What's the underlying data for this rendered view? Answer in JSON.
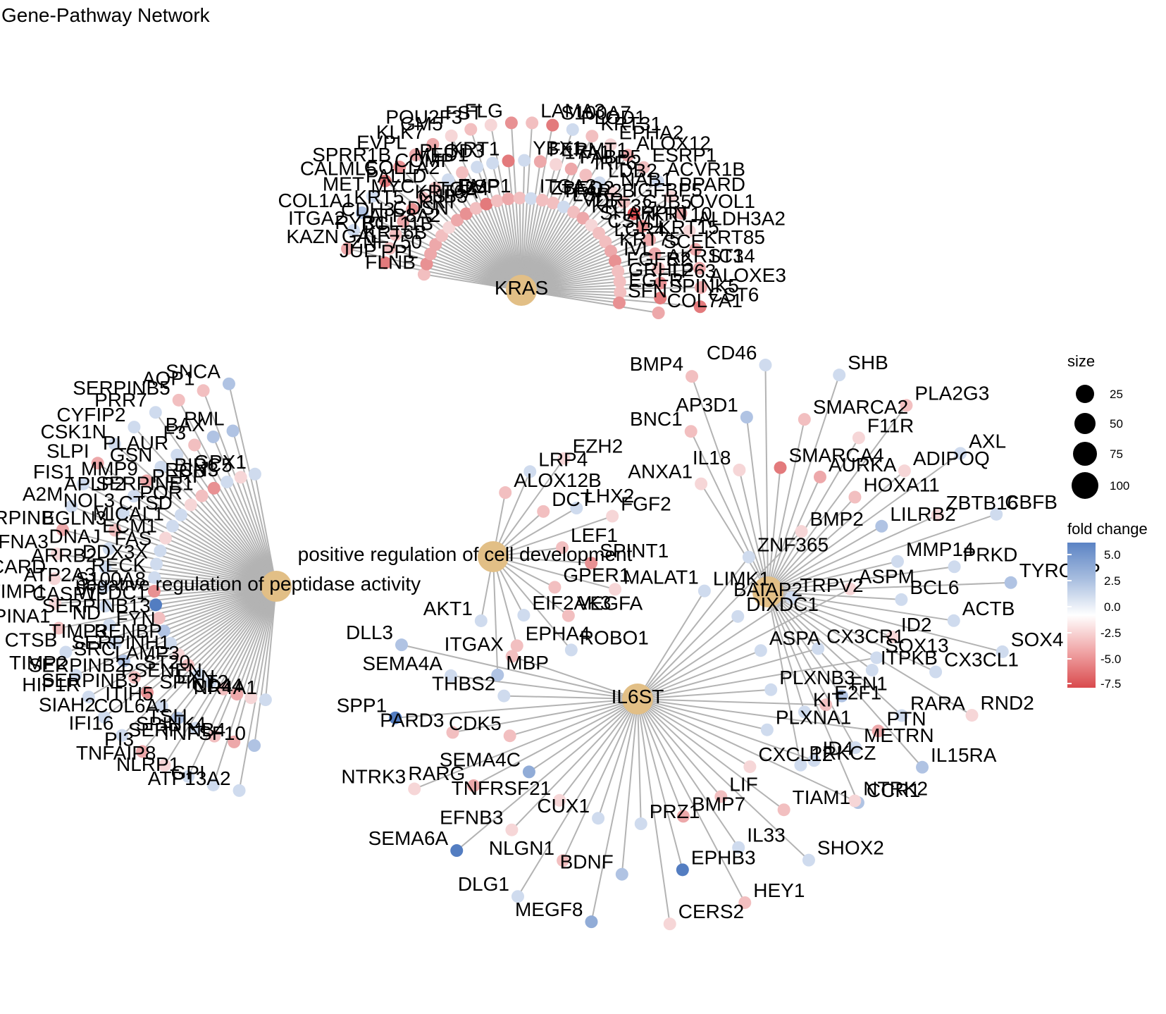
{
  "title": "Gene-Pathway Network",
  "colors": {
    "edge": "#b3b3b3",
    "hub": "#e2bf86",
    "pos": "#5b83c4",
    "neg": "#d94a4d"
  },
  "legend": {
    "size_title": "size",
    "size_labels": [
      "25",
      "50",
      "75",
      "100"
    ],
    "color_title": "fold change",
    "color_labels": [
      "5.0",
      "2.5",
      "0.0",
      "-2.5",
      "-5.0",
      "-7.5"
    ]
  },
  "hubs": [
    {
      "id": "h1",
      "label": "KRAS"
    },
    {
      "id": "h2",
      "label": "negative regulation of peptidase activity"
    },
    {
      "id": "h3",
      "label": "positive regulation of cell development"
    },
    {
      "id": "h4",
      "label": "IL6ST"
    },
    {
      "id": "h5",
      "label": "BAIAP2"
    }
  ],
  "genes": [
    {
      "l": "FLNB",
      "fc": -2,
      "h": "h1"
    },
    {
      "l": "JUP",
      "fc": -5,
      "h": "h1"
    },
    {
      "l": "KAZN",
      "fc": -3,
      "h": "h1"
    },
    {
      "l": "PPL",
      "fc": -4,
      "h": "h1"
    },
    {
      "l": "GAL",
      "fc": -2,
      "h": "h1"
    },
    {
      "l": "ITGA2",
      "fc": 1,
      "h": "h1"
    },
    {
      "l": "ZNF750",
      "fc": -3,
      "h": "h1"
    },
    {
      "l": "RYR1",
      "fc": -2,
      "h": "h1"
    },
    {
      "l": "COL1A1",
      "fc": 2,
      "h": "h1"
    },
    {
      "l": "KRT6B",
      "fc": -3,
      "h": "h1"
    },
    {
      "l": "CDH3",
      "fc": -3,
      "h": "h1"
    },
    {
      "l": "MET",
      "fc": 1,
      "h": "h1"
    },
    {
      "l": "BCL11B",
      "fc": -2,
      "h": "h1"
    },
    {
      "l": "KRT5",
      "fc": -4,
      "h": "h1"
    },
    {
      "l": "CALML5",
      "fc": -5,
      "h": "h1"
    },
    {
      "l": "ATP8A2",
      "fc": -1,
      "h": "h1"
    },
    {
      "l": "MYC",
      "fc": -2,
      "h": "h1"
    },
    {
      "l": "SPRR1B",
      "fc": -4,
      "h": "h1"
    },
    {
      "l": "CDSN",
      "fc": -3,
      "h": "h1"
    },
    {
      "l": "PALLD",
      "fc": -2,
      "h": "h1"
    },
    {
      "l": "EVPL",
      "fc": -3,
      "h": "h1"
    },
    {
      "l": "KRT",
      "fc": -4,
      "h": "h1"
    },
    {
      "l": "COL1A2",
      "fc": 1,
      "h": "h1"
    },
    {
      "l": "KLK7",
      "fc": -3,
      "h": "h1"
    },
    {
      "l": "GJB3",
      "fc": -2,
      "h": "h1"
    },
    {
      "l": "COMP",
      "fc": -2,
      "h": "h1"
    },
    {
      "l": "GM5",
      "fc": -1,
      "h": "h1"
    },
    {
      "l": "KRT6A",
      "fc": -5,
      "h": "h1"
    },
    {
      "l": "MED1",
      "fc": 1,
      "h": "h1"
    },
    {
      "l": "POU2F3",
      "fc": -2,
      "h": "h1"
    },
    {
      "l": "ITGB4",
      "fc": -2,
      "h": "h1"
    },
    {
      "l": "PLOD3",
      "fc": 1,
      "h": "h1"
    },
    {
      "l": "FST",
      "fc": -1,
      "h": "h1"
    },
    {
      "l": "DSP",
      "fc": -3,
      "h": "h1"
    },
    {
      "l": "KRT1",
      "fc": -5,
      "h": "h1"
    },
    {
      "l": "FLG",
      "fc": -4,
      "h": "h1"
    },
    {
      "l": "EMP1",
      "fc": -2,
      "h": "h1"
    },
    {
      "l": "YBX1",
      "fc": 1,
      "h": "h1"
    },
    {
      "l": "LAMA3",
      "fc": -2,
      "h": "h1"
    },
    {
      "l": "ITGA3",
      "fc": 1,
      "h": "h1"
    },
    {
      "l": "FERMT1",
      "fc": -3,
      "h": "h1"
    },
    {
      "l": "S100A7",
      "fc": -5,
      "h": "h1"
    },
    {
      "l": "ZBED2",
      "fc": -2,
      "h": "h1"
    },
    {
      "l": "17A1",
      "fc": -1,
      "h": "h1"
    },
    {
      "l": "PLOD1",
      "fc": 1,
      "h": "h1"
    },
    {
      "l": "TFAP2B",
      "fc": -2,
      "h": "h1"
    },
    {
      "l": "FABP5",
      "fc": -3,
      "h": "h1"
    },
    {
      "l": "KRT31",
      "fc": -2,
      "h": "h1"
    },
    {
      "l": "LSR",
      "fc": 1,
      "h": "h1"
    },
    {
      "l": "IRF6",
      "fc": -2,
      "h": "h1"
    },
    {
      "l": "EPHA2",
      "fc": -1,
      "h": "h1"
    },
    {
      "l": "VDR",
      "fc": -2,
      "h": "h1"
    },
    {
      "l": "LDB2",
      "fc": 1,
      "h": "h1"
    },
    {
      "l": "ALOX12",
      "fc": -3,
      "h": "h1"
    },
    {
      "l": "KRT32",
      "fc": -3,
      "h": "h1"
    },
    {
      "l": "NAB1",
      "fc": -1,
      "h": "h1"
    },
    {
      "l": "ESRP1",
      "fc": -2,
      "h": "h1"
    },
    {
      "l": "SHARPIN",
      "fc": -1,
      "h": "h1"
    },
    {
      "l": "IGFBP5",
      "fc": -2,
      "h": "h1"
    },
    {
      "l": "ACVR1B",
      "fc": 1,
      "h": "h1"
    },
    {
      "l": "CSM1",
      "fc": -2,
      "h": "h1"
    },
    {
      "l": "GJB5",
      "fc": -7,
      "h": "h1"
    },
    {
      "l": "PPARD",
      "fc": -1,
      "h": "h1"
    },
    {
      "l": "LGR4",
      "fc": -2,
      "h": "h1"
    },
    {
      "l": "KRT10",
      "fc": -4,
      "h": "h1"
    },
    {
      "l": "OVOL1",
      "fc": -3,
      "h": "h1"
    },
    {
      "l": "KRT75",
      "fc": -3,
      "h": "h1"
    },
    {
      "l": "KRT15",
      "fc": -3,
      "h": "h1"
    },
    {
      "l": "ALDH3A2",
      "fc": -1,
      "h": "h1"
    },
    {
      "l": "IVL",
      "fc": -4,
      "h": "h1"
    },
    {
      "l": "SCEL",
      "fc": -3,
      "h": "h1"
    },
    {
      "l": "KRT85",
      "fc": -3,
      "h": "h1"
    },
    {
      "l": "FGFR2",
      "fc": -2,
      "h": "h1"
    },
    {
      "l": "AKR1C3",
      "fc": -2,
      "h": "h1"
    },
    {
      "l": "ST14",
      "fc": -3,
      "h": "h1"
    },
    {
      "l": "GRHL2",
      "fc": -2,
      "h": "h1"
    },
    {
      "l": "TP63",
      "fc": -4,
      "h": "h1"
    },
    {
      "l": "ALOXE3",
      "fc": -3,
      "h": "h1"
    },
    {
      "l": "EGFR",
      "fc": -2,
      "h": "h1"
    },
    {
      "l": "SPINK5",
      "fc": -5,
      "h": "h1"
    },
    {
      "l": "CST6",
      "fc": -5,
      "h": "h1"
    },
    {
      "l": "SFN",
      "fc": -4,
      "h": "h1"
    },
    {
      "l": "COL7A1",
      "fc": -3,
      "h": "h1"
    },
    {
      "l": "NR4A1",
      "fc": 1,
      "h": "h2"
    },
    {
      "l": "TNFSF10",
      "fc": 2,
      "h": "h2"
    },
    {
      "l": "ATP13A2",
      "fc": 1,
      "h": "h2"
    },
    {
      "l": "CD44",
      "fc": -1,
      "h": "h2"
    },
    {
      "l": "SERPINB4",
      "fc": -3,
      "h": "h2"
    },
    {
      "l": "GPI",
      "fc": 1,
      "h": "h2"
    },
    {
      "l": "SPINT2",
      "fc": -3,
      "h": "h2"
    },
    {
      "l": "SPINK4",
      "fc": -2,
      "h": "h2"
    },
    {
      "l": "NLRP1",
      "fc": 1,
      "h": "h2"
    },
    {
      "l": "LXN",
      "fc": -2,
      "h": "h2"
    },
    {
      "l": "TSH",
      "fc": 1,
      "h": "h2"
    },
    {
      "l": "TNFAIP8",
      "fc": -1,
      "h": "h2"
    },
    {
      "l": "PSENEN",
      "fc": 1,
      "h": "h2"
    },
    {
      "l": "COL6A1",
      "fc": 2,
      "h": "h2"
    },
    {
      "l": "PI3",
      "fc": -3,
      "h": "h2"
    },
    {
      "l": "ST20",
      "fc": 1,
      "h": "h2"
    },
    {
      "l": "ITIH5",
      "fc": 1,
      "h": "h2"
    },
    {
      "l": "IFI16",
      "fc": 1,
      "h": "h2"
    },
    {
      "l": "LAMP3",
      "fc": -2,
      "h": "h2"
    },
    {
      "l": "SERPINB3",
      "fc": -4,
      "h": "h2"
    },
    {
      "l": "SIAH2",
      "fc": 1,
      "h": "h2"
    },
    {
      "l": "SERPINH1",
      "fc": -1,
      "h": "h2"
    },
    {
      "l": "SERPINB2",
      "fc": -2,
      "h": "h2"
    },
    {
      "l": "HIP1R",
      "fc": 1,
      "h": "h2"
    },
    {
      "l": "RENBP",
      "fc": 1,
      "h": "h2"
    },
    {
      "l": "SRC",
      "fc": 2,
      "h": "h2"
    },
    {
      "l": "TIMP2",
      "fc": 1,
      "h": "h2"
    },
    {
      "l": "FYN",
      "fc": 2,
      "h": "h2"
    },
    {
      "l": "TIMP3",
      "fc": 1,
      "h": "h2"
    },
    {
      "l": "CTSB",
      "fc": 1,
      "h": "h2"
    },
    {
      "l": "SERPINB13",
      "fc": -2,
      "h": "h2"
    },
    {
      "l": "ND",
      "fc": 1,
      "h": "h2"
    },
    {
      "l": "SERPINA1",
      "fc": -2,
      "h": "h2"
    },
    {
      "l": "WFDC1",
      "fc": 5,
      "h": "h2"
    },
    {
      "l": "CASP1",
      "fc": 1,
      "h": "h2"
    },
    {
      "l": "TIMP1",
      "fc": -1,
      "h": "h2"
    },
    {
      "l": "S100A8",
      "fc": -4,
      "h": "h2"
    },
    {
      "l": "ATP2A3",
      "fc": 1,
      "h": "h2"
    },
    {
      "l": "PYCARD",
      "fc": -1,
      "h": "h2"
    },
    {
      "l": "RECK",
      "fc": 1,
      "h": "h2"
    },
    {
      "l": "ARRB2",
      "fc": 1,
      "h": "h2"
    },
    {
      "l": "EFNA3",
      "fc": -1,
      "h": "h2"
    },
    {
      "l": "DDX3X",
      "fc": 1,
      "h": "h2"
    },
    {
      "l": "DNAJ",
      "fc": 1,
      "h": "h2"
    },
    {
      "l": "SERPINB",
      "fc": -3,
      "h": "h2"
    },
    {
      "l": "FAS",
      "fc": 1,
      "h": "h2"
    },
    {
      "l": "EGLN3",
      "fc": -2,
      "h": "h2"
    },
    {
      "l": "A2M",
      "fc": 1,
      "h": "h2"
    },
    {
      "l": "ECM1",
      "fc": -1,
      "h": "h2"
    },
    {
      "l": "NOL3",
      "fc": 1,
      "h": "h2"
    },
    {
      "l": "FIS1",
      "fc": 1,
      "h": "h2"
    },
    {
      "l": "MICAL1",
      "fc": 1,
      "h": "h2"
    },
    {
      "l": "APLP2",
      "fc": 1,
      "h": "h2"
    },
    {
      "l": "SLPI",
      "fc": -3,
      "h": "h2"
    },
    {
      "l": "CTSD",
      "fc": 1,
      "h": "h2"
    },
    {
      "l": "MMP9",
      "fc": -3,
      "h": "h2"
    },
    {
      "l": "CSK1N",
      "fc": 1,
      "h": "h2"
    },
    {
      "l": "POR",
      "fc": -1,
      "h": "h2"
    },
    {
      "l": "GSN",
      "fc": 1,
      "h": "h2"
    },
    {
      "l": "CYFIP2",
      "fc": 1,
      "h": "h2"
    },
    {
      "l": "SERPINE1",
      "fc": -2,
      "h": "h2"
    },
    {
      "l": "PLAUR",
      "fc": 1,
      "h": "h2"
    },
    {
      "l": "PRR7",
      "fc": 1,
      "h": "h2"
    },
    {
      "l": "PERP",
      "fc": -4,
      "h": "h2"
    },
    {
      "l": "F3",
      "fc": -2,
      "h": "h2"
    },
    {
      "l": "SERPINB5",
      "fc": -2,
      "h": "h2"
    },
    {
      "l": "RCN3",
      "fc": 1,
      "h": "h2"
    },
    {
      "l": "BAX",
      "fc": 2,
      "h": "h2"
    },
    {
      "l": "AQP1",
      "fc": -2,
      "h": "h2"
    },
    {
      "l": "BIRC5",
      "fc": -1,
      "h": "h2"
    },
    {
      "l": "PML",
      "fc": 2,
      "h": "h2"
    },
    {
      "l": "SNCA",
      "fc": 2,
      "h": "h2"
    },
    {
      "l": "GPX1",
      "fc": 1,
      "h": "h2"
    },
    {
      "l": "ALOX12B",
      "fc": -2,
      "h": "h3"
    },
    {
      "l": "LRP4",
      "fc": 1,
      "h": "h3"
    },
    {
      "l": "EZH2",
      "fc": -1,
      "h": "h3"
    },
    {
      "l": "DCT",
      "fc": -2,
      "h": "h3"
    },
    {
      "l": "LHX2",
      "fc": 1,
      "h": "h3"
    },
    {
      "l": "FGF2",
      "fc": -1,
      "h": "h3"
    },
    {
      "l": "LEF1",
      "fc": -2,
      "h": "h3"
    },
    {
      "l": "SPINT1",
      "fc": -4,
      "h": "h3"
    },
    {
      "l": "MALAT1",
      "fc": -1,
      "h": "h3"
    },
    {
      "l": "GPER1",
      "fc": -2,
      "h": "h3"
    },
    {
      "l": "VEGFA",
      "fc": -2,
      "h": "h3"
    },
    {
      "l": "ROBO1",
      "fc": 1,
      "h": "h3"
    },
    {
      "l": "EIF2AK3",
      "fc": 1,
      "h": "h3"
    },
    {
      "l": "EPHA4",
      "fc": -2,
      "h": "h3"
    },
    {
      "l": "MBP",
      "fc": 2,
      "h": "h3"
    },
    {
      "l": "AKT1",
      "fc": 1,
      "h": "h3"
    },
    {
      "l": "ANXA1",
      "fc": -1,
      "h": "h5"
    },
    {
      "l": "BNC1",
      "fc": -2,
      "h": "h5"
    },
    {
      "l": "BMP4",
      "fc": -2,
      "h": "h5"
    },
    {
      "l": "IL18",
      "fc": -1,
      "h": "h5"
    },
    {
      "l": "AP3D1",
      "fc": 2,
      "h": "h5"
    },
    {
      "l": "CD46",
      "fc": 1,
      "h": "h5"
    },
    {
      "l": "SMARCA4",
      "fc": -5,
      "h": "h5"
    },
    {
      "l": "SMARCA2",
      "fc": -2,
      "h": "h5"
    },
    {
      "l": "SHB",
      "fc": 1,
      "h": "h5"
    },
    {
      "l": "AURKA",
      "fc": -3,
      "h": "h5"
    },
    {
      "l": "F11R",
      "fc": -1,
      "h": "h5"
    },
    {
      "l": "PLA2G3",
      "fc": -2,
      "h": "h5"
    },
    {
      "l": "HOXA11",
      "fc": -2,
      "h": "h5"
    },
    {
      "l": "ADIPOQ",
      "fc": -1,
      "h": "h5"
    },
    {
      "l": "AXL",
      "fc": 1,
      "h": "h5"
    },
    {
      "l": "LILRB2",
      "fc": 2,
      "h": "h5"
    },
    {
      "l": "ZBTB16",
      "fc": -1,
      "h": "h5"
    },
    {
      "l": "CBFB",
      "fc": 1,
      "h": "h5"
    },
    {
      "l": "MMP14",
      "fc": 1,
      "h": "h5"
    },
    {
      "l": "PRKD",
      "fc": 1,
      "h": "h5"
    },
    {
      "l": "TYROBP",
      "fc": 2,
      "h": "h5"
    },
    {
      "l": "BCL6",
      "fc": 1,
      "h": "h5"
    },
    {
      "l": "ACTB",
      "fc": 1,
      "h": "h5"
    },
    {
      "l": "SOX4",
      "fc": 1,
      "h": "h5"
    },
    {
      "l": "ID2",
      "fc": -1,
      "h": "h5"
    },
    {
      "l": "CX3CL1",
      "fc": 1,
      "h": "h5"
    },
    {
      "l": "RND2",
      "fc": -1,
      "h": "h5"
    },
    {
      "l": "ITPKB",
      "fc": 1,
      "h": "h5"
    },
    {
      "l": "RARA",
      "fc": 1,
      "h": "h5"
    },
    {
      "l": "IL15RA",
      "fc": 2,
      "h": "h5"
    },
    {
      "l": "FN1",
      "fc": 2,
      "h": "h5"
    },
    {
      "l": "METRN",
      "fc": 1,
      "h": "h5"
    },
    {
      "l": "CCR1",
      "fc": 2,
      "h": "h5"
    },
    {
      "l": "KIT",
      "fc": 1,
      "h": "h5"
    },
    {
      "l": "PRKCZ",
      "fc": 1,
      "h": "h5"
    },
    {
      "l": "LIMK1",
      "fc": 1,
      "h": "h4"
    },
    {
      "l": "ZNF365",
      "fc": 1,
      "h": "h4"
    },
    {
      "l": "BMP2",
      "fc": -1,
      "h": "h4"
    },
    {
      "l": "DIXDC1",
      "fc": 1,
      "h": "h4"
    },
    {
      "l": "TRPV2",
      "fc": 1,
      "h": "h4"
    },
    {
      "l": "ASPM",
      "fc": -1,
      "h": "h4"
    },
    {
      "l": "ASPA",
      "fc": 1,
      "h": "h4"
    },
    {
      "l": "CX3CR1",
      "fc": 1,
      "h": "h4"
    },
    {
      "l": "SOX13",
      "fc": 1,
      "h": "h4"
    },
    {
      "l": "PLXNB3",
      "fc": 1,
      "h": "h4"
    },
    {
      "l": "E2F1",
      "fc": -2,
      "h": "h4"
    },
    {
      "l": "PTN",
      "fc": -3,
      "h": "h4"
    },
    {
      "l": "PLXNA1",
      "fc": 1,
      "h": "h4"
    },
    {
      "l": "ID4",
      "fc": 1,
      "h": "h4"
    },
    {
      "l": "NTRK2",
      "fc": -1,
      "h": "h4"
    },
    {
      "l": "CXCL12",
      "fc": -1,
      "h": "h4"
    },
    {
      "l": "TIAM1",
      "fc": -2,
      "h": "h4"
    },
    {
      "l": "SHOX2",
      "fc": 1,
      "h": "h4"
    },
    {
      "l": "LIF",
      "fc": -2,
      "h": "h4"
    },
    {
      "l": "IL33",
      "fc": 1,
      "h": "h4"
    },
    {
      "l": "HEY1",
      "fc": -2,
      "h": "h4"
    },
    {
      "l": "BMP7",
      "fc": -3,
      "h": "h4"
    },
    {
      "l": "EPHB3",
      "fc": 5,
      "h": "h4"
    },
    {
      "l": "CERS2",
      "fc": -1,
      "h": "h4"
    },
    {
      "l": "PRZ1",
      "fc": 1,
      "h": "h4"
    },
    {
      "l": "BDNF",
      "fc": 2,
      "h": "h4"
    },
    {
      "l": "MEGF8",
      "fc": 3,
      "h": "h4"
    },
    {
      "l": "CUX1",
      "fc": 1,
      "h": "h4"
    },
    {
      "l": "NLGN1",
      "fc": -2,
      "h": "h4"
    },
    {
      "l": "DLG1",
      "fc": 1,
      "h": "h4"
    },
    {
      "l": "TNFRSF21",
      "fc": -1,
      "h": "h4"
    },
    {
      "l": "EFNB3",
      "fc": -1,
      "h": "h4"
    },
    {
      "l": "SEMA6A",
      "fc": 6,
      "h": "h4"
    },
    {
      "l": "SEMA4C",
      "fc": 3,
      "h": "h4"
    },
    {
      "l": "RARG",
      "fc": -3,
      "h": "h4"
    },
    {
      "l": "NTRK3",
      "fc": -1,
      "h": "h4"
    },
    {
      "l": "CDK5",
      "fc": -2,
      "h": "h4"
    },
    {
      "l": "PARD3",
      "fc": -2,
      "h": "h4"
    },
    {
      "l": "SPP1",
      "fc": 5,
      "h": "h4"
    },
    {
      "l": "THBS2",
      "fc": 1,
      "h": "h4"
    },
    {
      "l": "SEMA4A",
      "fc": 1,
      "h": "h4"
    },
    {
      "l": "DLL3",
      "fc": 2,
      "h": "h4"
    },
    {
      "l": "ITGAX",
      "fc": -2,
      "h": "h4"
    }
  ]
}
